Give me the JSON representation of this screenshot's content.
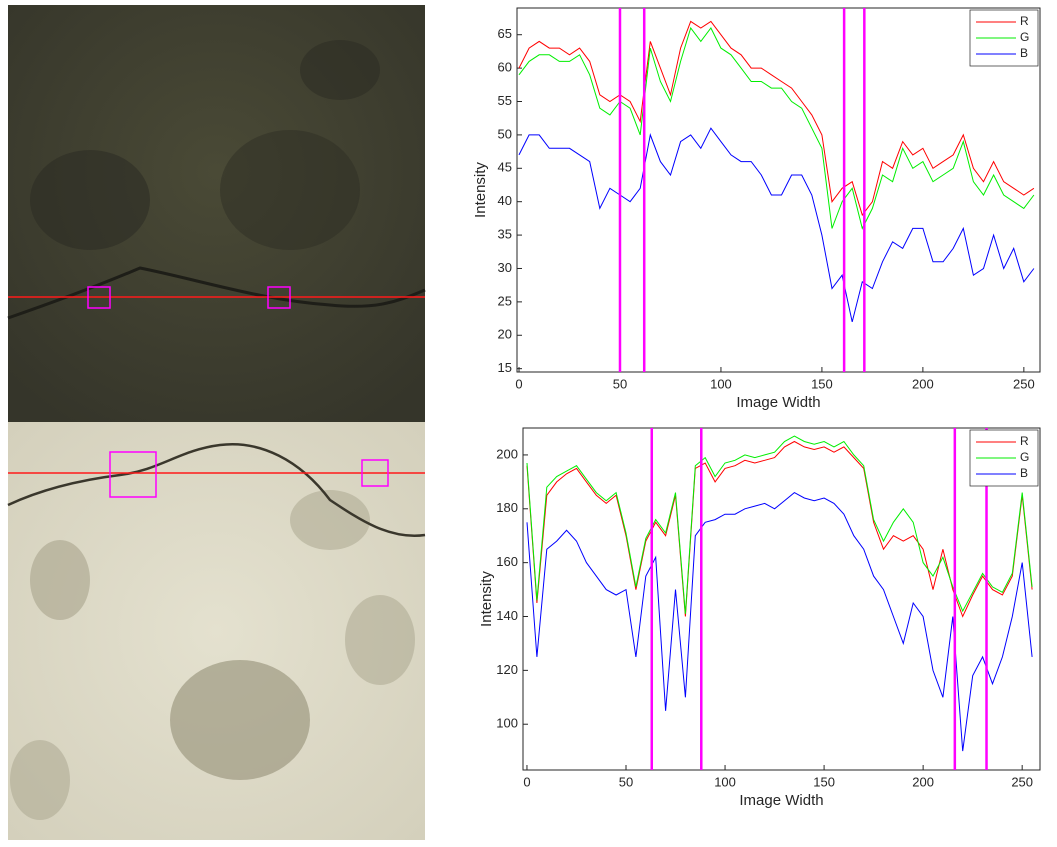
{
  "chart_data": [
    {
      "type": "line",
      "xlabel": "Image Width",
      "ylabel": "Intensity",
      "x": [
        0,
        5,
        10,
        15,
        20,
        25,
        30,
        35,
        40,
        45,
        50,
        55,
        60,
        65,
        70,
        75,
        80,
        85,
        90,
        95,
        100,
        105,
        110,
        115,
        120,
        125,
        130,
        135,
        140,
        145,
        150,
        155,
        160,
        165,
        170,
        175,
        180,
        185,
        190,
        195,
        200,
        205,
        210,
        215,
        220,
        225,
        230,
        235,
        240,
        245,
        250,
        255
      ],
      "series": [
        {
          "name": "R",
          "color": "#ff0000",
          "values": [
            60,
            63,
            64,
            63,
            63,
            62,
            63,
            61,
            56,
            55,
            56,
            55,
            52,
            64,
            60,
            56,
            63,
            67,
            66,
            67,
            65,
            63,
            62,
            60,
            60,
            59,
            58,
            57,
            55,
            53,
            50,
            40,
            42,
            43,
            38,
            40,
            46,
            45,
            49,
            47,
            48,
            45,
            46,
            47,
            50,
            45,
            43,
            46,
            43,
            42,
            41,
            42
          ]
        },
        {
          "name": "G",
          "color": "#00ee00",
          "values": [
            59,
            61,
            62,
            62,
            61,
            61,
            62,
            59,
            54,
            53,
            55,
            54,
            50,
            63,
            58,
            55,
            61,
            66,
            64,
            66,
            63,
            62,
            60,
            58,
            58,
            57,
            57,
            55,
            54,
            51,
            48,
            36,
            40,
            42,
            36,
            39,
            44,
            43,
            48,
            45,
            46,
            43,
            44,
            45,
            49,
            43,
            41,
            44,
            41,
            40,
            39,
            41
          ]
        },
        {
          "name": "B",
          "color": "#0000ff",
          "values": [
            47,
            50,
            50,
            48,
            48,
            48,
            47,
            46,
            39,
            42,
            41,
            40,
            42,
            50,
            46,
            44,
            49,
            50,
            48,
            51,
            49,
            47,
            46,
            46,
            44,
            41,
            41,
            44,
            44,
            41,
            35,
            27,
            29,
            22,
            28,
            27,
            31,
            34,
            33,
            36,
            36,
            31,
            31,
            33,
            36,
            29,
            30,
            35,
            30,
            33,
            28,
            30
          ]
        }
      ],
      "vlines": [
        50,
        62,
        161,
        171
      ],
      "vline_color": "#ff00ff",
      "xlim": [
        -1,
        258
      ],
      "ylim": [
        14.5,
        69
      ],
      "xticks": [
        0,
        50,
        100,
        150,
        200,
        250
      ],
      "yticks": [
        15,
        20,
        25,
        30,
        35,
        40,
        45,
        50,
        55,
        60,
        65
      ],
      "legend": "upper right"
    },
    {
      "type": "line",
      "xlabel": "Image Width",
      "ylabel": "Intensity",
      "x": [
        0,
        5,
        10,
        15,
        20,
        25,
        30,
        35,
        40,
        45,
        50,
        55,
        60,
        65,
        70,
        75,
        80,
        85,
        90,
        95,
        100,
        105,
        110,
        115,
        120,
        125,
        130,
        135,
        140,
        145,
        150,
        155,
        160,
        165,
        170,
        175,
        180,
        185,
        190,
        195,
        200,
        205,
        210,
        215,
        220,
        225,
        230,
        235,
        240,
        245,
        250,
        255
      ],
      "series": [
        {
          "name": "R",
          "color": "#ff0000",
          "values": [
            196,
            145,
            185,
            190,
            193,
            195,
            190,
            185,
            182,
            185,
            170,
            150,
            168,
            175,
            170,
            185,
            140,
            195,
            197,
            190,
            195,
            196,
            198,
            197,
            198,
            199,
            203,
            205,
            203,
            202,
            203,
            201,
            203,
            199,
            195,
            175,
            165,
            170,
            168,
            170,
            165,
            150,
            165,
            150,
            140,
            148,
            155,
            150,
            148,
            155,
            185,
            150
          ]
        },
        {
          "name": "G",
          "color": "#00ee00",
          "values": [
            197,
            146,
            188,
            192,
            194,
            196,
            191,
            186,
            183,
            186,
            171,
            151,
            169,
            176,
            171,
            186,
            141,
            196,
            199,
            192,
            197,
            198,
            200,
            199,
            200,
            201,
            205,
            207,
            205,
            204,
            205,
            203,
            205,
            200,
            196,
            176,
            168,
            175,
            180,
            175,
            160,
            155,
            162,
            151,
            142,
            149,
            156,
            151,
            149,
            156,
            186,
            151
          ]
        },
        {
          "name": "B",
          "color": "#0000ff",
          "values": [
            175,
            125,
            165,
            168,
            172,
            168,
            160,
            155,
            150,
            148,
            150,
            125,
            155,
            162,
            105,
            150,
            110,
            170,
            175,
            176,
            178,
            178,
            180,
            181,
            182,
            180,
            183,
            186,
            184,
            183,
            184,
            182,
            178,
            170,
            165,
            155,
            150,
            140,
            130,
            145,
            140,
            120,
            110,
            140,
            90,
            118,
            125,
            115,
            125,
            140,
            160,
            125
          ]
        }
      ],
      "vlines": [
        63,
        88,
        216,
        232
      ],
      "vline_color": "#ff00ff",
      "xlim": [
        -2,
        259
      ],
      "ylim": [
        83,
        210
      ],
      "xticks": [
        0,
        50,
        100,
        150,
        200,
        250
      ],
      "yticks": [
        100,
        120,
        140,
        160,
        180,
        200
      ],
      "legend": "upper right"
    }
  ]
}
